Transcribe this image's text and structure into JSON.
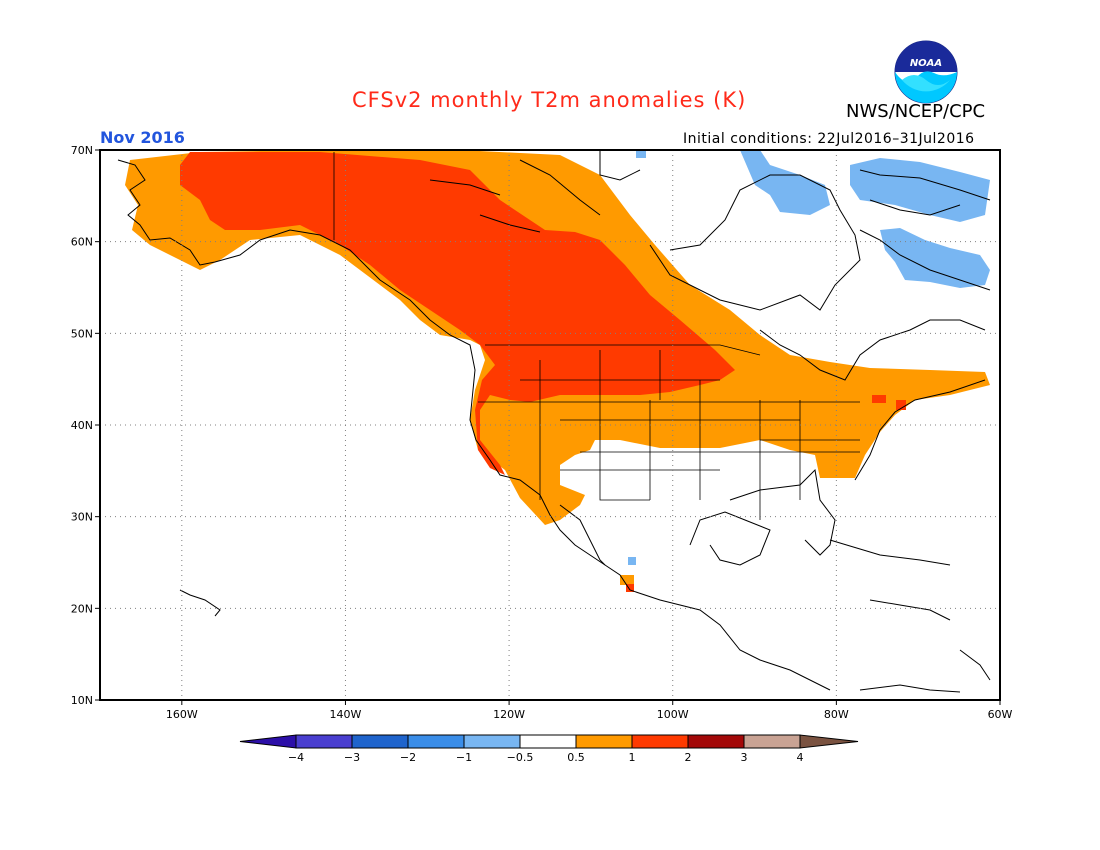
{
  "title": "CFSv2 monthly T2m anomalies (K)",
  "agency": "NWS/NCEP/CPC",
  "logo_text": "NOAA",
  "valid_month": "Nov 2016",
  "initial_conditions": "Initial conditions: 22Jul2016–31Jul2016",
  "lat_labels": [
    "70N",
    "60N",
    "50N",
    "40N",
    "30N",
    "20N",
    "10N"
  ],
  "lon_labels": [
    "160W",
    "140W",
    "120W",
    "100W",
    "80W",
    "60W"
  ],
  "map_extent": {
    "lon": [
      -170,
      -60
    ],
    "lat": [
      10,
      70
    ]
  },
  "colorbar": {
    "labels": [
      "−4",
      "−3",
      "−2",
      "−1",
      "−0.5",
      "0.5",
      "1",
      "2",
      "3",
      "4"
    ],
    "colors": [
      "#2c0fa8",
      "#4a3fd0",
      "#1f64cc",
      "#3a8de8",
      "#78b6f2",
      "#ffffff",
      "#ff9a00",
      "#ff3a00",
      "#a30808",
      "#c9a394",
      "#7a5240"
    ]
  },
  "anomaly_colors": {
    "0.5-1": "#ff9a00",
    "1-2": "#ff3a00",
    "-1--0.5": "#78b6f2",
    "-2--1": "#3a8de8"
  }
}
